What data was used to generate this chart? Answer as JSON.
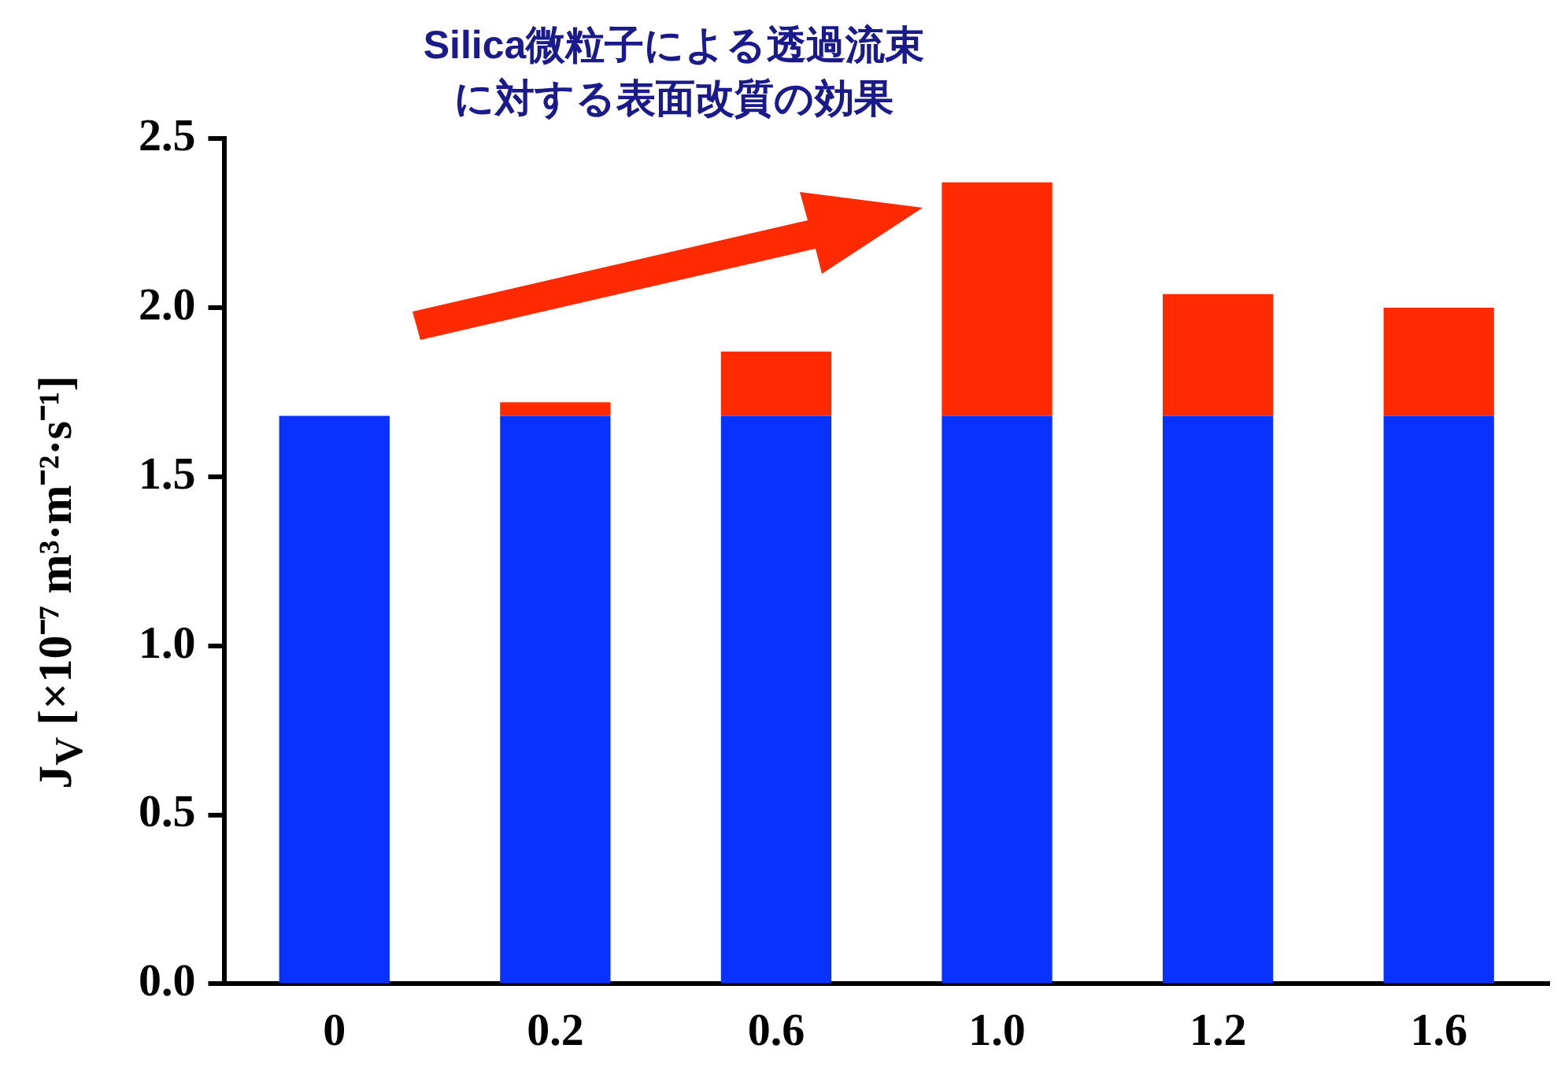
{
  "chart_data": {
    "type": "bar",
    "title": "Silica微粒子による透過流束に対する表面改質の効果",
    "ylabel": "J$_{V}$ [×10⁻⁷ m³·m⁻²·s⁻¹]",
    "categories": [
      "0",
      "0.2",
      "0.6",
      "1.0",
      "1.2",
      "1.6"
    ],
    "stacked": true,
    "series": [
      {
        "color": "#0a32ff",
        "values": [
          1.68,
          1.68,
          1.68,
          1.68,
          1.68,
          1.68
        ]
      },
      {
        "color": "#ff2a00",
        "values": [
          0,
          0.04,
          0.19,
          0.69,
          0.36,
          0.32
        ]
      }
    ],
    "ylim": [
      0,
      2.5
    ],
    "yticks": [
      {
        "value": 0,
        "label": "0.0"
      },
      {
        "value": 0.5,
        "label": "0.5"
      },
      {
        "value": 1,
        "label": "1.0"
      },
      {
        "value": 1.5,
        "label": "1.5"
      },
      {
        "value": 2,
        "label": "2.0"
      },
      {
        "value": 2.5,
        "label": "2.5"
      }
    ],
    "grid": false,
    "legend": false
  }
}
